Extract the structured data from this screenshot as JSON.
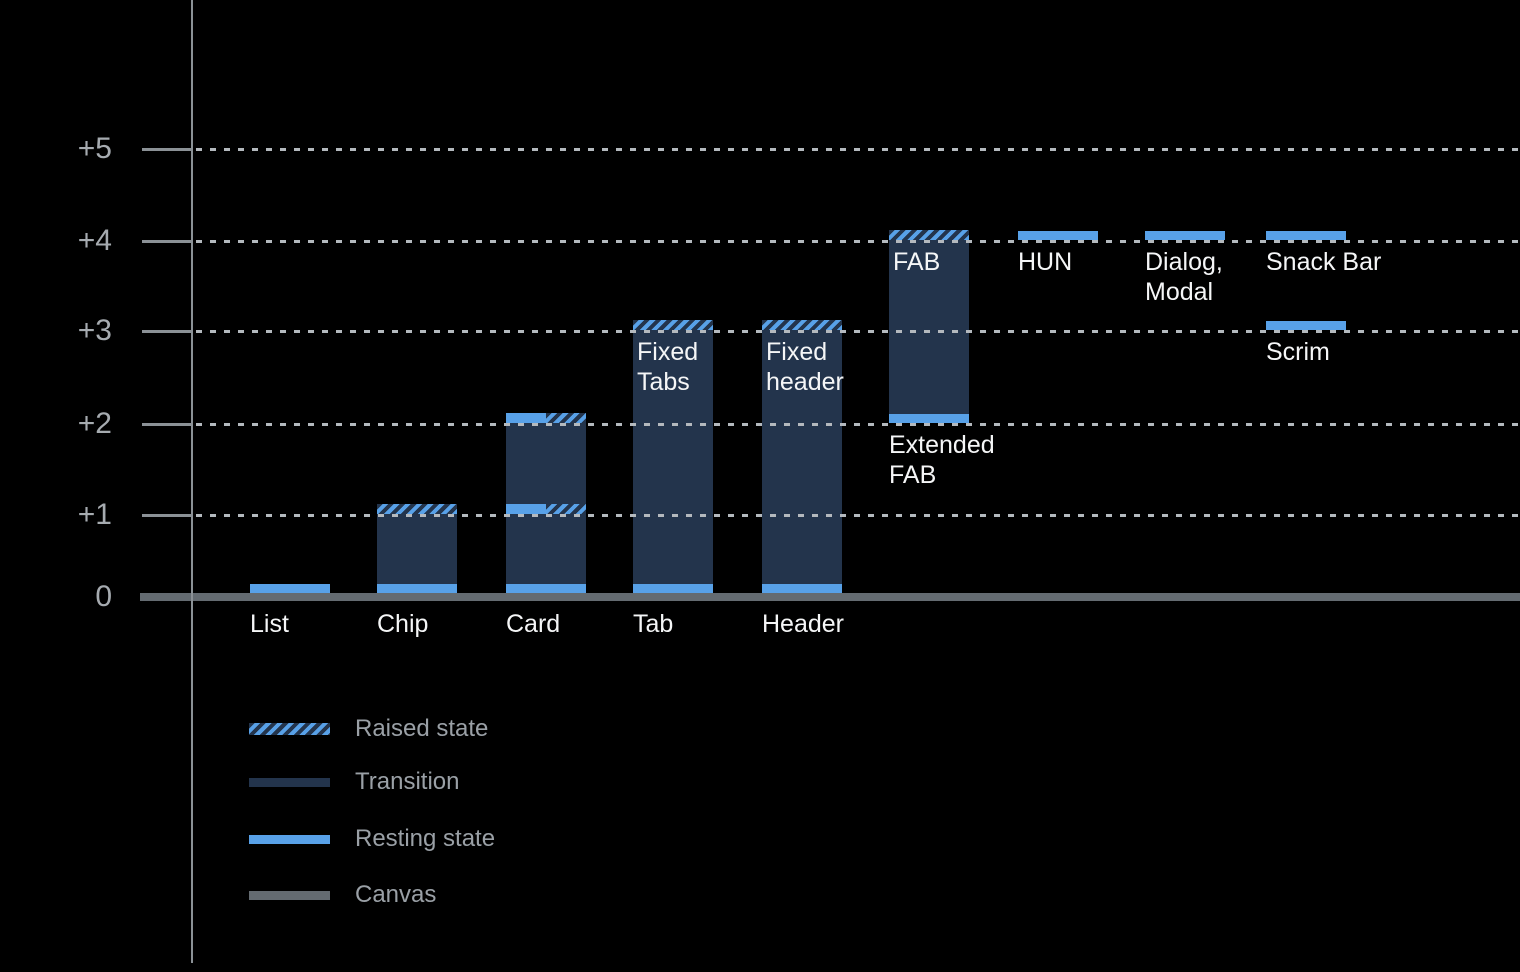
{
  "colors": {
    "background": "#000000",
    "resting": "#58A1E8",
    "transition": "#23344C",
    "canvas": "#646B71",
    "grid_dot": "#B4B9BE",
    "axis_line": "#8B9196",
    "tick_text": "#A6ABB0",
    "legend_text": "#9AA0A6",
    "bar_text": "#F5F6F7"
  },
  "axis": {
    "ticks": [
      {
        "label": "+5",
        "level": 5
      },
      {
        "label": "+4",
        "level": 4
      },
      {
        "label": "+3",
        "level": 3
      },
      {
        "label": "+2",
        "level": 2
      },
      {
        "label": "+1",
        "level": 1
      },
      {
        "label": "0",
        "level": 0
      }
    ]
  },
  "legend": {
    "items": [
      {
        "label": "Raised state",
        "type": "raised"
      },
      {
        "label": "Transition",
        "type": "transition"
      },
      {
        "label": "Resting state",
        "type": "resting"
      },
      {
        "label": "Canvas",
        "type": "canvas"
      }
    ]
  },
  "chart_data": {
    "type": "bar",
    "title": "",
    "ylim": [
      0,
      5
    ],
    "y_tick_labels": [
      "0",
      "+1",
      "+2",
      "+3",
      "+4",
      "+5"
    ],
    "grid": "dotted-horizontal",
    "legend_position": "bottom-left",
    "categories": [
      "List",
      "Chip",
      "Card",
      "Tab",
      "Header",
      "Extended FAB",
      "HUN",
      "Dialog, Modal",
      "Snack Bar",
      "Scrim"
    ],
    "components": [
      {
        "name": "list",
        "label": [
          "List"
        ],
        "label_position": "baseline",
        "transition": null,
        "inner_label": null,
        "bands": [
          {
            "level": 0,
            "style": "resting"
          }
        ]
      },
      {
        "name": "chip",
        "label": [
          "Chip"
        ],
        "label_position": "baseline",
        "transition": [
          0,
          1
        ],
        "inner_label": null,
        "bands": [
          {
            "level": 0,
            "style": "resting"
          },
          {
            "level": 1,
            "style": "raised"
          }
        ]
      },
      {
        "name": "card",
        "label": [
          "Card"
        ],
        "label_position": "baseline",
        "transition": [
          0,
          2
        ],
        "inner_label": null,
        "bands": [
          {
            "level": 0,
            "style": "resting"
          },
          {
            "level": 1,
            "style": "resting-raised"
          },
          {
            "level": 2,
            "style": "resting-raised"
          }
        ]
      },
      {
        "name": "tab",
        "label": [
          "Tab"
        ],
        "label_position": "baseline",
        "transition": [
          0,
          3
        ],
        "inner_label": [
          "Fixed",
          "Tabs"
        ],
        "bands": [
          {
            "level": 0,
            "style": "resting"
          },
          {
            "level": 3,
            "style": "raised"
          }
        ]
      },
      {
        "name": "header",
        "label": [
          "Header"
        ],
        "label_position": "baseline",
        "transition": [
          0,
          3
        ],
        "inner_label": [
          "Fixed",
          "header"
        ],
        "bands": [
          {
            "level": 0,
            "style": "resting"
          },
          {
            "level": 3,
            "style": "raised"
          }
        ]
      },
      {
        "name": "extended-fab",
        "label": [
          "Extended",
          "FAB"
        ],
        "label_position": "below",
        "transition": [
          2,
          4
        ],
        "inner_label": [
          "FAB"
        ],
        "bands": [
          {
            "level": 2,
            "style": "resting"
          },
          {
            "level": 4,
            "style": "raised"
          }
        ]
      },
      {
        "name": "hun",
        "label": [
          "HUN"
        ],
        "label_position": "below",
        "transition": null,
        "inner_label": null,
        "bands": [
          {
            "level": 4,
            "style": "resting"
          }
        ]
      },
      {
        "name": "dialog-modal",
        "label": [
          "Dialog,",
          "Modal"
        ],
        "label_position": "below",
        "transition": null,
        "inner_label": null,
        "bands": [
          {
            "level": 4,
            "style": "resting"
          }
        ]
      },
      {
        "name": "snack-bar",
        "label": [
          "Snack Bar"
        ],
        "label_position": "below",
        "transition": null,
        "inner_label": null,
        "bands": [
          {
            "level": 4,
            "style": "resting"
          }
        ]
      },
      {
        "name": "scrim",
        "label": [
          "Scrim"
        ],
        "label_position": "below",
        "transition": null,
        "inner_label": null,
        "bands": [
          {
            "level": 3,
            "style": "resting"
          }
        ]
      }
    ]
  }
}
